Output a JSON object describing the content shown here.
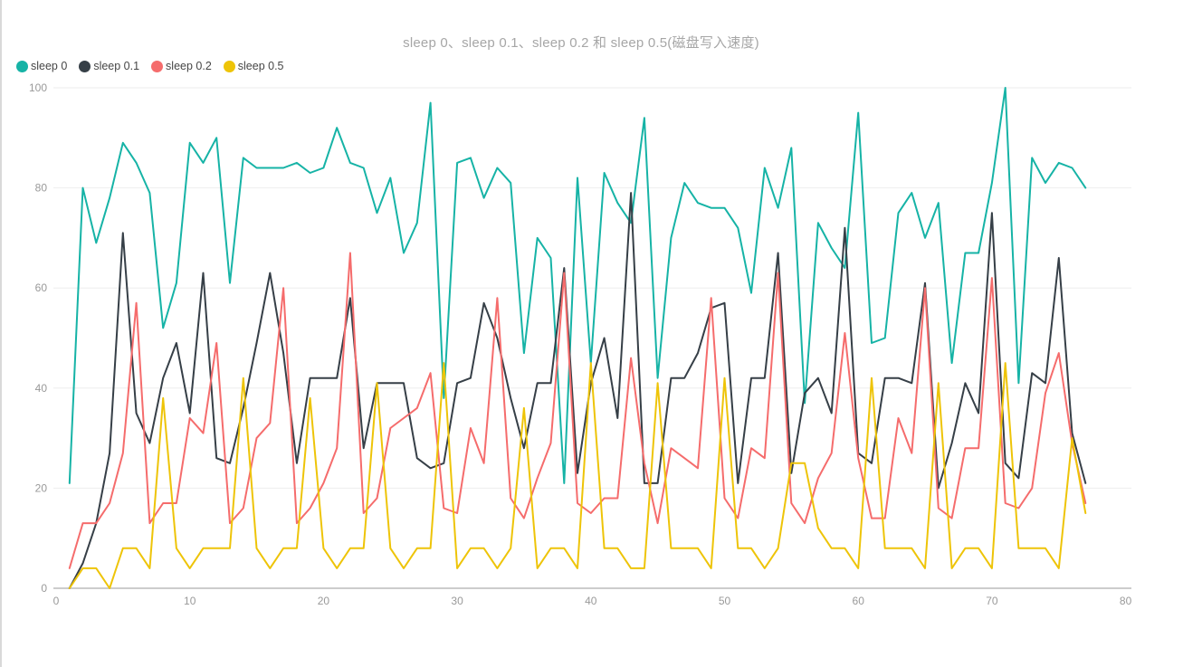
{
  "page": {
    "background_color": "#ffffff",
    "left_border_color": "#d9d9d9"
  },
  "chart_data": {
    "type": "line",
    "title": "sleep 0、sleep 0.1、sleep 0.2 和 sleep 0.5(磁盘写入速度)",
    "title_color": "#a6a6a6",
    "legend_position": "top-left",
    "grid": "horizontal-only",
    "x_start": 1,
    "xlim": [
      0,
      80
    ],
    "ylim": [
      0,
      100
    ],
    "x_ticks": [
      0,
      10,
      20,
      30,
      40,
      50,
      60,
      70,
      80
    ],
    "y_ticks": [
      0,
      20,
      40,
      60,
      80,
      100
    ],
    "axis_color": "#cccccc",
    "grid_color": "#eeeeee",
    "tick_label_color": "#999999",
    "series": [
      {
        "name": "sleep 0",
        "color": "#16b3a6",
        "values": [
          21,
          80,
          69,
          78,
          89,
          85,
          79,
          52,
          61,
          89,
          85,
          90,
          61,
          86,
          84,
          84,
          84,
          85,
          83,
          84,
          92,
          85,
          84,
          75,
          82,
          67,
          73,
          97,
          38,
          85,
          86,
          78,
          84,
          81,
          47,
          70,
          66,
          21,
          82,
          45,
          83,
          77,
          73,
          94,
          42,
          70,
          81,
          77,
          76,
          76,
          72,
          59,
          84,
          76,
          88,
          37,
          73,
          68,
          64,
          95,
          49,
          50,
          75,
          79,
          70,
          77,
          45,
          67,
          67,
          81,
          100,
          41,
          86,
          81,
          85,
          84,
          80
        ]
      },
      {
        "name": "sleep 0.1",
        "color": "#363f47",
        "values": [
          0,
          5,
          13,
          27,
          71,
          35,
          29,
          42,
          49,
          35,
          63,
          26,
          25,
          36,
          49,
          63,
          47,
          25,
          42,
          42,
          42,
          58,
          28,
          41,
          41,
          41,
          26,
          24,
          25,
          41,
          42,
          57,
          50,
          38,
          28,
          41,
          41,
          64,
          23,
          41,
          50,
          34,
          79,
          21,
          21,
          42,
          42,
          47,
          56,
          57,
          21,
          42,
          42,
          67,
          23,
          39,
          42,
          35,
          72,
          27,
          25,
          42,
          42,
          41,
          61,
          20,
          29,
          41,
          35,
          75,
          25,
          22,
          43,
          41,
          66,
          31,
          21
        ]
      },
      {
        "name": "sleep 0.2",
        "color": "#f56c6c",
        "values": [
          4,
          13,
          13,
          17,
          27,
          57,
          13,
          17,
          17,
          34,
          31,
          49,
          13,
          16,
          30,
          33,
          60,
          13,
          16,
          21,
          28,
          67,
          15,
          18,
          32,
          34,
          36,
          43,
          16,
          15,
          32,
          25,
          58,
          18,
          14,
          22,
          29,
          63,
          17,
          15,
          18,
          18,
          46,
          25,
          13,
          28,
          26,
          24,
          58,
          18,
          14,
          28,
          26,
          63,
          17,
          13,
          22,
          27,
          51,
          26,
          14,
          14,
          34,
          27,
          60,
          16,
          14,
          28,
          28,
          62,
          17,
          16,
          20,
          39,
          47,
          29,
          17
        ]
      },
      {
        "name": "sleep 0.5",
        "color": "#eec408",
        "values": [
          0,
          4,
          4,
          0,
          8,
          8,
          4,
          38,
          8,
          4,
          8,
          8,
          8,
          42,
          8,
          4,
          8,
          8,
          38,
          8,
          4,
          8,
          8,
          41,
          8,
          4,
          8,
          8,
          45,
          4,
          8,
          8,
          4,
          8,
          36,
          4,
          8,
          8,
          4,
          45,
          8,
          8,
          4,
          4,
          41,
          8,
          8,
          8,
          4,
          42,
          8,
          8,
          4,
          8,
          25,
          25,
          12,
          8,
          8,
          4,
          42,
          8,
          8,
          8,
          4,
          41,
          4,
          8,
          8,
          4,
          45,
          8,
          8,
          8,
          4,
          30,
          15
        ]
      }
    ]
  }
}
